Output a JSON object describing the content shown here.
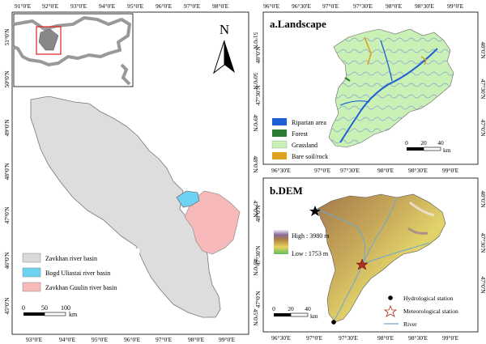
{
  "left_map": {
    "top_ticks": [
      "91°0'E",
      "92°0'E",
      "93°0'E",
      "94°0'E",
      "95°0'E",
      "96°0'E",
      "97°0'E",
      "98°0'E"
    ],
    "bottom_ticks": [
      "93°0'E",
      "94°0'E",
      "95°0'E",
      "96°0'E",
      "97°0'E",
      "98°0'E",
      "99°0'E"
    ],
    "left_ticks": [
      "51°0'N",
      "50°0'N",
      "49°0'N",
      "48°0'N",
      "47°0'N",
      "46°0'N",
      "45°0'N"
    ],
    "right_ticks": [
      "51°0'N",
      "50°0'N",
      "49°0'N",
      "48°0'N",
      "47°0'N",
      "46°0'N",
      "45°0'N"
    ],
    "north_label": "N",
    "legend": [
      {
        "label": "Zavkhan river basin",
        "color": "#d9d9d9"
      },
      {
        "label": "Bogd Uliastai river basin",
        "color": "#6dd3f4"
      },
      {
        "label": "Zavkhan Guulin river basin",
        "color": "#f7b9b9"
      }
    ],
    "scale": {
      "ticks": [
        "0",
        "50",
        "100"
      ],
      "unit": "km"
    }
  },
  "panel_a": {
    "title": "a.Landscape",
    "top_ticks": [
      "96°0'E",
      "96°30'E",
      "97°0'E",
      "97°30'E",
      "98°0'E",
      "98°30'E",
      "99°0'E"
    ],
    "bottom_ticks": [
      "96°30'E",
      "97°0'E",
      "97°30'E",
      "98°0'E",
      "98°30'E",
      "99°0'E"
    ],
    "right_ticks": [
      "48°0'N",
      "47°30'N",
      "47°0'N"
    ],
    "legend": [
      {
        "label": "Riparian area",
        "color": "#1f5fd6"
      },
      {
        "label": "Forest",
        "color": "#2e7d32"
      },
      {
        "label": "Grassland",
        "color": "#c9f0b5"
      },
      {
        "label": "Bare soil/rock",
        "color": "#e0a020"
      }
    ],
    "scale": {
      "ticks": [
        "0",
        "20",
        "40"
      ],
      "unit": "km"
    }
  },
  "panel_b": {
    "title": "b.DEM",
    "bottom_ticks": [
      "96°30'E",
      "97°0'E",
      "97°30'E",
      "98°0'E",
      "98°30'E",
      "99°0'E"
    ],
    "left_ticks": [
      "48°0'N",
      "47°30'N",
      "47°0'N"
    ],
    "right_ticks": [
      "48°0'N",
      "47°30'N",
      "47°0'N"
    ],
    "high": "High : 3980 m",
    "low": "Low : 1753 m",
    "legend": [
      {
        "label": "Hydrological station",
        "symbol": "dot"
      },
      {
        "label": "Meteorological station",
        "symbol": "star"
      },
      {
        "label": "River",
        "symbol": "line"
      }
    ],
    "scale": {
      "ticks": [
        "0",
        "20",
        "40"
      ],
      "unit": "km"
    }
  }
}
